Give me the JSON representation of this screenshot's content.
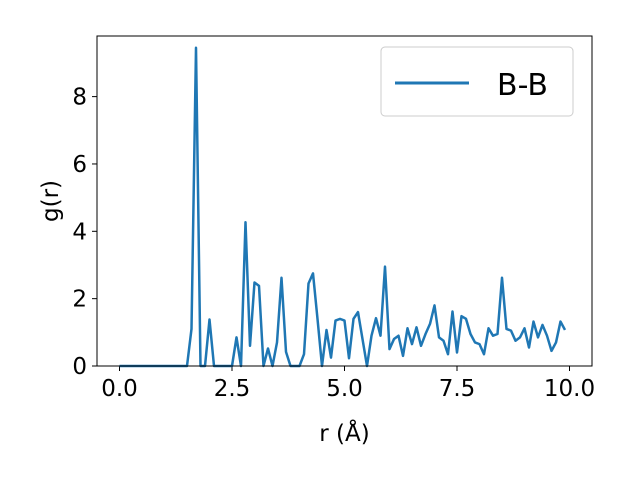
{
  "chart_data": {
    "type": "line",
    "xlabel": "r (Å)",
    "ylabel": "g(r)",
    "xlim": [
      -0.5,
      10.5
    ],
    "ylim": [
      0,
      9.8
    ],
    "xticks": [
      0.0,
      2.5,
      5.0,
      7.5,
      10.0
    ],
    "xtick_labels": [
      "0.0",
      "2.5",
      "5.0",
      "7.5",
      "10.0"
    ],
    "yticks": [
      0,
      2,
      4,
      6,
      8
    ],
    "ytick_labels": [
      "0",
      "2",
      "4",
      "6",
      "8"
    ],
    "grid": false,
    "legend_position": "top-right",
    "series": [
      {
        "name": "B-B",
        "color": "#1f77b4",
        "x": [
          0.0,
          0.1,
          0.2,
          0.3,
          0.4,
          0.5,
          0.6,
          0.7,
          0.8,
          0.9,
          1.0,
          1.1,
          1.2,
          1.3,
          1.4,
          1.5,
          1.6,
          1.7,
          1.8,
          1.9,
          2.0,
          2.1,
          2.2,
          2.3,
          2.4,
          2.5,
          2.6,
          2.7,
          2.8,
          2.9,
          3.0,
          3.1,
          3.2,
          3.3,
          3.4,
          3.5,
          3.6,
          3.7,
          3.8,
          3.9,
          4.0,
          4.1,
          4.2,
          4.3,
          4.4,
          4.5,
          4.6,
          4.7,
          4.8,
          4.9,
          5.0,
          5.1,
          5.2,
          5.3,
          5.4,
          5.5,
          5.6,
          5.7,
          5.8,
          5.9,
          6.0,
          6.1,
          6.2,
          6.3,
          6.4,
          6.5,
          6.6,
          6.7,
          6.8,
          6.9,
          7.0,
          7.1,
          7.2,
          7.3,
          7.4,
          7.5,
          7.6,
          7.7,
          7.8,
          7.9,
          8.0,
          8.1,
          8.2,
          8.3,
          8.4,
          8.5,
          8.6,
          8.7,
          8.8,
          8.9,
          9.0,
          9.1,
          9.2,
          9.3,
          9.4,
          9.5,
          9.6,
          9.7,
          9.8,
          9.9
        ],
        "y": [
          0,
          0,
          0,
          0,
          0,
          0,
          0,
          0,
          0,
          0,
          0,
          0,
          0,
          0,
          0,
          0,
          1.1,
          9.45,
          0,
          0,
          1.38,
          0,
          0,
          0,
          0,
          0,
          0.85,
          0,
          4.27,
          0.6,
          2.48,
          2.38,
          0,
          0.52,
          0,
          0.7,
          2.62,
          0.42,
          0,
          0,
          0,
          0.35,
          2.45,
          2.75,
          1.4,
          0,
          1.07,
          0.25,
          1.35,
          1.4,
          1.35,
          0.23,
          1.4,
          1.6,
          0.8,
          0,
          0.9,
          1.42,
          0.9,
          2.95,
          0.5,
          0.8,
          0.9,
          0.3,
          1.12,
          0.65,
          1.15,
          0.6,
          0.95,
          1.25,
          1.8,
          0.85,
          0.75,
          0.35,
          1.62,
          0.4,
          1.48,
          1.4,
          0.95,
          0.7,
          0.65,
          0.35,
          1.12,
          0.9,
          0.95,
          2.62,
          1.1,
          1.05,
          0.75,
          0.85,
          1.12,
          0.55,
          1.32,
          0.85,
          1.22,
          0.9,
          0.45,
          0.7,
          1.32,
          1.07
        ]
      }
    ]
  }
}
